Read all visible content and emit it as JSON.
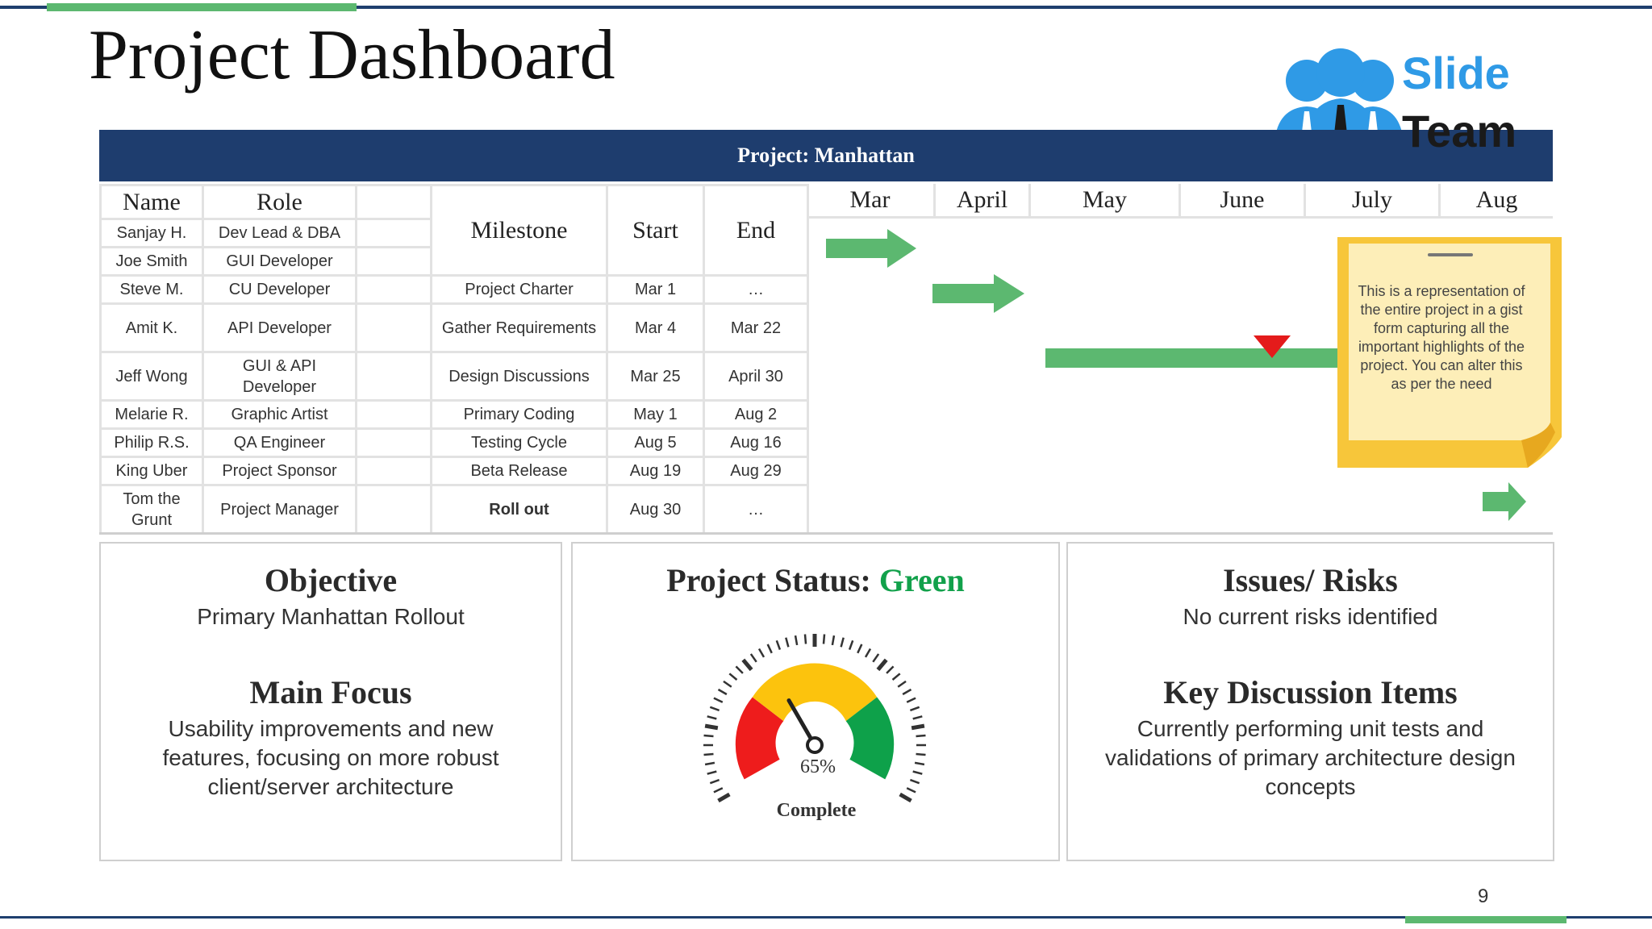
{
  "title": "Project Dashboard",
  "logo": {
    "line1": "Slide",
    "line2": "Team"
  },
  "project_banner": "Project: Manhattan",
  "table": {
    "headers": {
      "name": "Name",
      "role": "Role",
      "milestone": "Milestone",
      "start": "Start",
      "end": "End"
    },
    "team": [
      {
        "name": "Sanjay H.",
        "role": "Dev Lead & DBA"
      },
      {
        "name": "Joe Smith",
        "role": "GUI Developer"
      },
      {
        "name": "Steve M.",
        "role": "CU Developer"
      },
      {
        "name": "Amit K.",
        "role": "API Developer"
      },
      {
        "name": "Jeff Wong",
        "role": "GUI & API Developer"
      },
      {
        "name": "Melarie R.",
        "role": "Graphic Artist"
      },
      {
        "name": "Philip R.S.",
        "role": "QA Engineer"
      },
      {
        "name": "King Uber",
        "role": "Project Sponsor"
      },
      {
        "name": "Tom the Grunt",
        "role": "Project Manager"
      }
    ],
    "milestones": [
      {
        "milestone": "Project Charter",
        "start": "Mar 1",
        "end": "…"
      },
      {
        "milestone": "Gather Requirements",
        "start": "Mar 4",
        "end": "Mar 22"
      },
      {
        "milestone": "Design Discussions",
        "start": "Mar 25",
        "end": "April 30"
      },
      {
        "milestone": "Primary Coding",
        "start": "May 1",
        "end": "Aug 2"
      },
      {
        "milestone": "Testing Cycle",
        "start": "Aug 5",
        "end": "Aug 16"
      },
      {
        "milestone": "Beta Release",
        "start": "Aug 19",
        "end": "Aug 29"
      },
      {
        "milestone": "Roll out",
        "start": "Aug 30",
        "end": "…"
      }
    ]
  },
  "gantt_months": [
    "Mar",
    "April",
    "May",
    "June",
    "July",
    "Aug"
  ],
  "sticky_note": "This is a representation of the entire project in a gist form capturing all the important highlights of the project. You can alter this as per the need",
  "objective": {
    "heading": "Objective",
    "text": "Primary Manhattan  Rollout",
    "focus_heading": "Main Focus",
    "focus_text": "Usability improvements and new features, focusing on more robust client/server architecture"
  },
  "status": {
    "heading": "Project Status:",
    "value": "Green",
    "value_color": "#12a14b",
    "percent": "65%",
    "complete_label": "Complete",
    "progress": 0.65
  },
  "issues": {
    "heading": "Issues/ Risks",
    "text": "No current risks identified",
    "discussion_heading": "Key Discussion Items",
    "discussion_text": "Currently performing unit tests and validations of primary architecture design concepts"
  },
  "page_number": "9",
  "colors": {
    "accent_green": "#5cb870",
    "navy": "#1e3d6e",
    "arrow_red": "#e41b1b"
  }
}
